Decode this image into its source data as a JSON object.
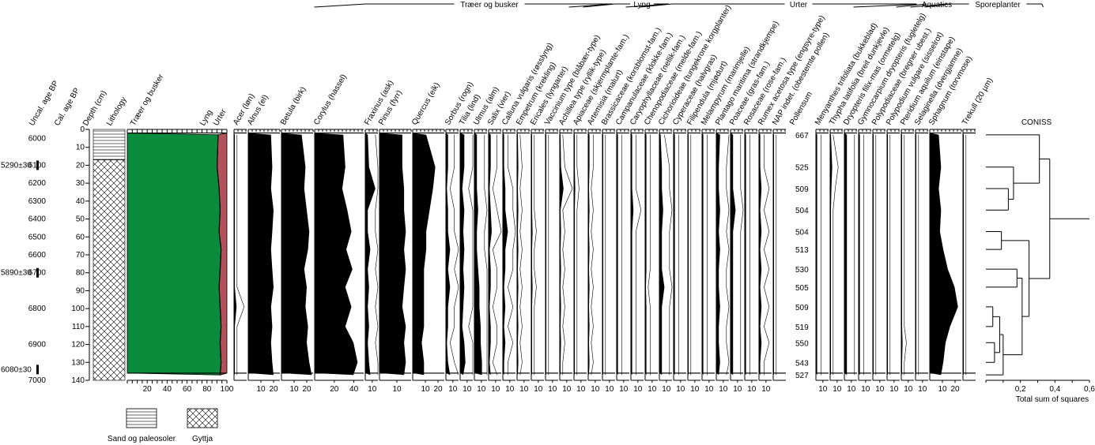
{
  "chart_data": {
    "type": "pollen-diagram",
    "group_headers": [
      "Træer og busker",
      "Lyng",
      "Urter",
      "Aquatics",
      "Sporeplanter"
    ],
    "left_axes": {
      "uncal_label": "Uncal. age BP",
      "cal_label": "Cal. age BP",
      "depth_label": "Depth (cm)",
      "lithology_label": "Lithology",
      "depth_range": [
        0,
        140
      ],
      "depth_ticks": [
        "0",
        "10",
        "20",
        "30",
        "40",
        "50",
        "60",
        "70",
        "80",
        "90",
        "100",
        "110",
        "120",
        "130",
        "140"
      ],
      "cal_ticks": [
        "6000",
        "6100",
        "6200",
        "6300",
        "6400",
        "6500",
        "6600",
        "6700",
        "6800",
        "6900",
        "7000"
      ],
      "cal_at_depth": [
        5,
        20,
        30,
        40,
        50,
        60,
        70,
        80,
        100,
        120,
        140
      ],
      "radiocarbon_dates": [
        {
          "label": "5290±30",
          "depth": 20
        },
        {
          "label": "5890±30",
          "depth": 80
        },
        {
          "label": "6080±30",
          "depth": 134
        }
      ],
      "pollensum_label": "Pollensum",
      "pollensum_values": [
        "667",
        "525",
        "509",
        "504",
        "504",
        "513",
        "530",
        "505",
        "509",
        "519",
        "550",
        "543",
        "527"
      ]
    },
    "sample_depths": [
      3,
      21,
      33,
      45,
      57,
      67,
      78,
      88,
      99,
      110,
      119,
      130,
      137
    ],
    "lithology_legend": [
      {
        "label": "Sand og paleosoler",
        "pattern": "horizontal-lines"
      },
      {
        "label": "Gyttja",
        "pattern": "crosshatch"
      }
    ],
    "summary": {
      "header_label": "Træer og busker",
      "series_labels": [
        "Træer og busker",
        "Lyng",
        "Urter"
      ],
      "x_ticks": [
        "20",
        "40",
        "60",
        "80",
        "100"
      ],
      "tree_cum": [
        91,
        90,
        92,
        93,
        92,
        94,
        93,
        92,
        93,
        94,
        93,
        94,
        93
      ],
      "heath_cum": [
        91.3,
        90.3,
        92.3,
        93.3,
        92.3,
        94.3,
        93.3,
        92.3,
        93.3,
        94.3,
        93.3,
        94.3,
        93.3
      ],
      "colors": {
        "trees": "#0a8c3c",
        "herbs": "#b3525a"
      }
    },
    "taxa": [
      {
        "name": "Acer (løn)",
        "values": [
          0.3,
          0.3,
          0.3,
          0.3,
          0.3,
          0.3,
          0.3,
          0.3,
          1,
          0.3,
          0.3,
          0.3,
          0.3
        ],
        "xmax": 5,
        "ticks": []
      },
      {
        "name": "Alnus (el)",
        "values": [
          18,
          19,
          18,
          20,
          19,
          18,
          19,
          20,
          18,
          19,
          18,
          19,
          20
        ],
        "xmax": 25,
        "ticks": [
          "10",
          "20"
        ]
      },
      {
        "name": "Betula (birk)",
        "values": [
          16,
          19,
          18,
          20,
          22,
          21,
          18,
          20,
          19,
          21,
          20,
          22,
          24
        ],
        "xmax": 25,
        "ticks": [
          "10",
          "20"
        ]
      },
      {
        "name": "Corylus (hassel)",
        "values": [
          28,
          30,
          27,
          32,
          36,
          31,
          37,
          30,
          36,
          30,
          38,
          42,
          38
        ],
        "xmax": 48,
        "ticks": [
          "20",
          "40"
        ]
      },
      {
        "name": "Fraxinus (ask)",
        "values": [
          1,
          1.5,
          4,
          1,
          1,
          2,
          1,
          1.5,
          1,
          1.5,
          1,
          1.5,
          2
        ],
        "xmax": 5,
        "ticks": [
          "10"
        ]
      },
      {
        "name": "Pinus (fyrr)",
        "values": [
          13,
          13,
          14,
          14,
          15,
          14,
          15,
          14,
          13,
          15,
          14,
          15,
          14
        ],
        "xmax": 18,
        "ticks": [
          "10"
        ]
      },
      {
        "name": "Quercus (eik)",
        "values": [
          12,
          20,
          18,
          15,
          12,
          12,
          10,
          10,
          10,
          10,
          8,
          10,
          10
        ],
        "xmax": 28,
        "ticks": [
          "10",
          "20"
        ]
      },
      {
        "name": "Sorbus (rogn)",
        "values": [
          1,
          1,
          0.5,
          1,
          1,
          2,
          1,
          2,
          1,
          1,
          0.5,
          1,
          2
        ],
        "xmax": 6,
        "ticks": [
          "10"
        ]
      },
      {
        "name": "Tilia (lind)",
        "values": [
          2,
          2,
          1,
          2,
          1.5,
          2,
          1.5,
          2,
          1.5,
          1,
          2,
          2.5,
          1.5
        ],
        "xmax": 6,
        "ticks": [
          "10"
        ]
      },
      {
        "name": "Ulmus (alm)",
        "values": [
          2,
          2,
          2,
          3,
          2,
          2,
          3,
          4,
          4,
          5,
          5,
          6,
          6
        ],
        "xmax": 10,
        "ticks": [
          "10"
        ]
      },
      {
        "name": "Salix (vier)",
        "values": [
          1,
          1,
          0.5,
          1,
          1.5,
          0.5,
          1,
          1,
          0.5,
          1,
          1,
          0.5,
          1
        ],
        "xmax": 6,
        "ticks": [
          "10"
        ]
      },
      {
        "name": "Calluna vulgaris (røsslyng)",
        "values": [
          0.5,
          0.5,
          1,
          1,
          2,
          1,
          1,
          0.5,
          1,
          0.5,
          1,
          0.5,
          0.5
        ],
        "xmax": 5,
        "ticks": [
          "10"
        ]
      },
      {
        "name": "Empetrum (krekling)",
        "values": [
          0.3,
          0.5,
          0.3,
          0.5,
          0.3,
          0.5,
          0.3,
          0.5,
          0.3,
          0.5,
          0.3,
          0.5,
          0.3
        ],
        "xmax": 5,
        "ticks": [
          "10"
        ]
      },
      {
        "name": "Ericales (lyngarter)",
        "values": [
          0.3,
          0.3,
          0.3,
          0.3,
          0.5,
          0.3,
          0.3,
          0.5,
          0.3,
          0.3,
          0.3,
          0.3,
          0.3
        ],
        "xmax": 5,
        "ticks": [
          "10"
        ]
      },
      {
        "name": "Vaccinium type (blåbær-type)",
        "values": [
          0.3,
          0.3,
          0.3,
          0.3,
          0.3,
          0.3,
          0.3,
          0.3,
          0.3,
          0.3,
          0.3,
          0.3,
          0.3
        ],
        "xmax": 5,
        "ticks": [
          "10"
        ]
      },
      {
        "name": "Achillea type (ryllik-type)",
        "values": [
          0.3,
          0.5,
          1.5,
          0.3,
          0.5,
          0.3,
          0.5,
          0.3,
          0.5,
          0.3,
          0.5,
          0.3,
          0.3
        ],
        "xmax": 5,
        "ticks": [
          "10"
        ]
      },
      {
        "name": "Apiaceae (skjermplante-fam.)",
        "values": [
          0.3,
          0.3,
          0.5,
          0.3,
          0.3,
          0.3,
          0.3,
          0.3,
          0.3,
          0.3,
          0.3,
          0.3,
          0.3
        ],
        "xmax": 5,
        "ticks": [
          "10"
        ]
      },
      {
        "name": "Artemisia (malurt)",
        "values": [
          0.5,
          0.5,
          0.3,
          0.5,
          0.3,
          0.5,
          0.3,
          0.5,
          0.3,
          0.5,
          0.3,
          0.5,
          0.3
        ],
        "xmax": 5,
        "ticks": [
          "10"
        ]
      },
      {
        "name": "Brassicaceae (korsblomst-fam.)",
        "values": [
          0.3,
          0.3,
          0.3,
          0.3,
          0.3,
          0.3,
          0.3,
          0.3,
          0.3,
          0.3,
          0.3,
          0.3,
          0.3
        ],
        "xmax": 5,
        "ticks": [
          "10"
        ]
      },
      {
        "name": "Campanulaceae (klokke-fam.)",
        "values": [
          0.5,
          0.5,
          0.5,
          0.5,
          0.5,
          0.5,
          0.5,
          0.5,
          0.5,
          0.5,
          0.5,
          0.5,
          0.5
        ],
        "xmax": 5,
        "ticks": [
          "10"
        ]
      },
      {
        "name": "Caryophyllaceae (nellik-fam.)",
        "values": [
          0.5,
          0.5,
          0.5,
          1,
          0.5,
          0.5,
          0.5,
          0.5,
          0.5,
          0.5,
          0.5,
          0.5,
          0.5
        ],
        "xmax": 5,
        "ticks": [
          "10"
        ]
      },
      {
        "name": "Chenopodiaceae (melde-fam.)",
        "values": [
          0.5,
          0.5,
          0.5,
          0.5,
          0.5,
          0.5,
          0.5,
          0.3,
          0.5,
          0.5,
          0.5,
          0.5,
          0.5
        ],
        "xmax": 5,
        "ticks": [
          "10"
        ]
      },
      {
        "name": "Cichorioideae (tungekrone korgplanter)",
        "values": [
          0.5,
          1,
          1,
          1.5,
          1,
          1,
          1,
          2,
          1,
          1,
          1,
          1,
          1
        ],
        "xmax": 5,
        "ticks": [
          "10"
        ]
      },
      {
        "name": "Cyperaceae (halvgras)",
        "values": [
          0.5,
          0.5,
          0.5,
          0.5,
          0.5,
          0.5,
          0.5,
          0.5,
          0.5,
          0.5,
          0.5,
          0.5,
          0.5
        ],
        "xmax": 5,
        "ticks": [
          "10"
        ]
      },
      {
        "name": "Filipendula (mjødurt)",
        "values": [
          0.3,
          0.3,
          0.3,
          0.3,
          0.3,
          0.3,
          0.3,
          0.3,
          0.3,
          0.3,
          0.3,
          0.3,
          0.3
        ],
        "xmax": 5,
        "ticks": [
          "10"
        ]
      },
      {
        "name": "Melampyrum (marimjelle)",
        "values": [
          0.5,
          0.5,
          0.5,
          0.5,
          0.5,
          0.5,
          0.5,
          0.5,
          0.5,
          0.5,
          0.5,
          0.5,
          0.5
        ],
        "xmax": 5,
        "ticks": [
          "10"
        ]
      },
      {
        "name": "Plantago maritima (strandkjempe)",
        "values": [
          1.5,
          1,
          1,
          1.5,
          1,
          1.5,
          1,
          1,
          1.5,
          1,
          1,
          1.5,
          1
        ],
        "xmax": 5,
        "ticks": [
          "10"
        ]
      },
      {
        "name": "Poaceae (gras-fam.)",
        "values": [
          1,
          1,
          1,
          2,
          1,
          1,
          1,
          1,
          1,
          1,
          1,
          1,
          1
        ],
        "xmax": 5,
        "ticks": [
          "10"
        ]
      },
      {
        "name": "Rosaceae (rose-fam.)",
        "values": [
          0.5,
          0.5,
          0.5,
          0.5,
          0.5,
          0.5,
          0.5,
          0.5,
          0.5,
          0.5,
          0.5,
          0.5,
          0.5
        ],
        "xmax": 5,
        "ticks": [
          "10"
        ]
      },
      {
        "name": "Rumex acetosa type (engsyre-type)",
        "values": [
          0.5,
          0.5,
          1,
          0.5,
          1,
          0.5,
          1,
          0.5,
          1,
          0.5,
          1,
          0.5,
          0.5
        ],
        "xmax": 5,
        "ticks": [
          "10"
        ]
      },
      {
        "name": "NAP indet. (obestemte pollen)",
        "values": [
          0.3,
          0.3,
          0.3,
          0.3,
          0.3,
          0.3,
          0.3,
          0.3,
          0.3,
          0.3,
          0.3,
          0.3,
          0.3
        ],
        "xmax": 5,
        "ticks": []
      },
      {
        "name": "Menyanthes trifoliata (bukkeblad)",
        "values": [
          0.5,
          0.5,
          0.5,
          0.5,
          0.5,
          0.5,
          0.5,
          0.5,
          0.5,
          0.5,
          0.5,
          0.5,
          0.5
        ],
        "xmax": 5,
        "ticks": [
          "10"
        ]
      },
      {
        "name": "Thypha latifolia (breit dunkjevle)",
        "values": [
          0.3,
          0.8,
          0.5,
          0.3,
          0.3,
          0.3,
          0.3,
          0.3,
          0.3,
          0.3,
          0.3,
          0.3,
          0.3
        ],
        "xmax": 5,
        "ticks": [
          "10"
        ]
      },
      {
        "name": "Dryopteris filix-mas (ormetelg)",
        "values": [
          1,
          1,
          1,
          1,
          1,
          1,
          1,
          1,
          1,
          1,
          1,
          1,
          1
        ],
        "xmax": 5,
        "ticks": [
          "10"
        ]
      },
      {
        "name": "Gymnocarpium dryopteris (fugletelg)",
        "values": [
          0.5,
          0.5,
          0.5,
          0.5,
          0.5,
          0.5,
          0.5,
          0.5,
          0.5,
          0.5,
          0.5,
          0.5,
          0.5
        ],
        "xmax": 5,
        "ticks": [
          "10"
        ]
      },
      {
        "name": "Polypodiaceae (bregner ubest.)",
        "values": [
          0.3,
          0.3,
          0.3,
          0.3,
          0.3,
          0.3,
          0.3,
          0.3,
          0.3,
          0.3,
          0.3,
          0.3,
          0.3
        ],
        "xmax": 5,
        "ticks": [
          "10"
        ]
      },
      {
        "name": "Polypodium vulgare (sisselrot)",
        "values": [
          0.3,
          0.3,
          0.3,
          0.3,
          0.3,
          0.3,
          0.3,
          0.3,
          0.3,
          0.3,
          0.3,
          0.3,
          0.3
        ],
        "xmax": 5,
        "ticks": [
          "10"
        ]
      },
      {
        "name": "Pteridium aquilum (einstape)",
        "values": [
          0.3,
          0.3,
          0.3,
          0.3,
          0.3,
          0.3,
          0.3,
          0.3,
          0.3,
          0.3,
          0.5,
          0.3,
          0.3
        ],
        "xmax": 5,
        "ticks": [
          "10"
        ]
      },
      {
        "name": "Selaginella (dvergjamne)",
        "values": [
          0.3,
          0.3,
          0.3,
          0.3,
          0.3,
          0.3,
          0.3,
          0.3,
          0.3,
          0.3,
          0.3,
          0.3,
          0.3
        ],
        "xmax": 5,
        "ticks": [
          "10"
        ]
      },
      {
        "name": "Sphagnum (torvmose)",
        "values": [
          8,
          10,
          8,
          10,
          9,
          12,
          16,
          22,
          25,
          18,
          14,
          12,
          10
        ],
        "xmax": 28,
        "ticks": [
          "10",
          "20"
        ]
      },
      {
        "name": "Trekull (20 µm)",
        "values": [
          0.3,
          0.3,
          0.3,
          0.3,
          0.3,
          0.3,
          0.3,
          0.3,
          0.3,
          0.3,
          0.3,
          0.3,
          0.3
        ],
        "xmax": 5,
        "ticks": []
      }
    ],
    "coniss": {
      "title": "CONISS",
      "xlabel": "Total sum of squares",
      "x_ticks": [
        "0,2",
        "0,4",
        "0,6"
      ],
      "xmax": 0.6,
      "leaf_order": [
        0,
        1,
        2,
        3,
        4,
        5,
        6,
        7,
        8,
        9,
        10,
        11,
        12
      ],
      "merges": [
        {
          "a": 2,
          "b": 3,
          "h": 0.13
        },
        {
          "a": 1,
          "b": "m0",
          "h": 0.16
        },
        {
          "a": 0,
          "b": "m1",
          "h": 0.31
        },
        {
          "a": 4,
          "b": 5,
          "h": 0.09
        },
        {
          "a": 6,
          "b": 7,
          "h": 0.18
        },
        {
          "a": 8,
          "b": 9,
          "h": 0.04
        },
        {
          "a": 10,
          "b": 11,
          "h": 0.05
        },
        {
          "a": "m5",
          "b": "m6",
          "h": 0.08
        },
        {
          "a": 12,
          "b": "m7",
          "h": 0.1
        },
        {
          "a": "m4",
          "b": "m8",
          "h": 0.21
        },
        {
          "a": "m3",
          "b": "m9",
          "h": 0.25
        },
        {
          "a": "m2",
          "b": "m10",
          "h": 0.37
        }
      ]
    }
  }
}
